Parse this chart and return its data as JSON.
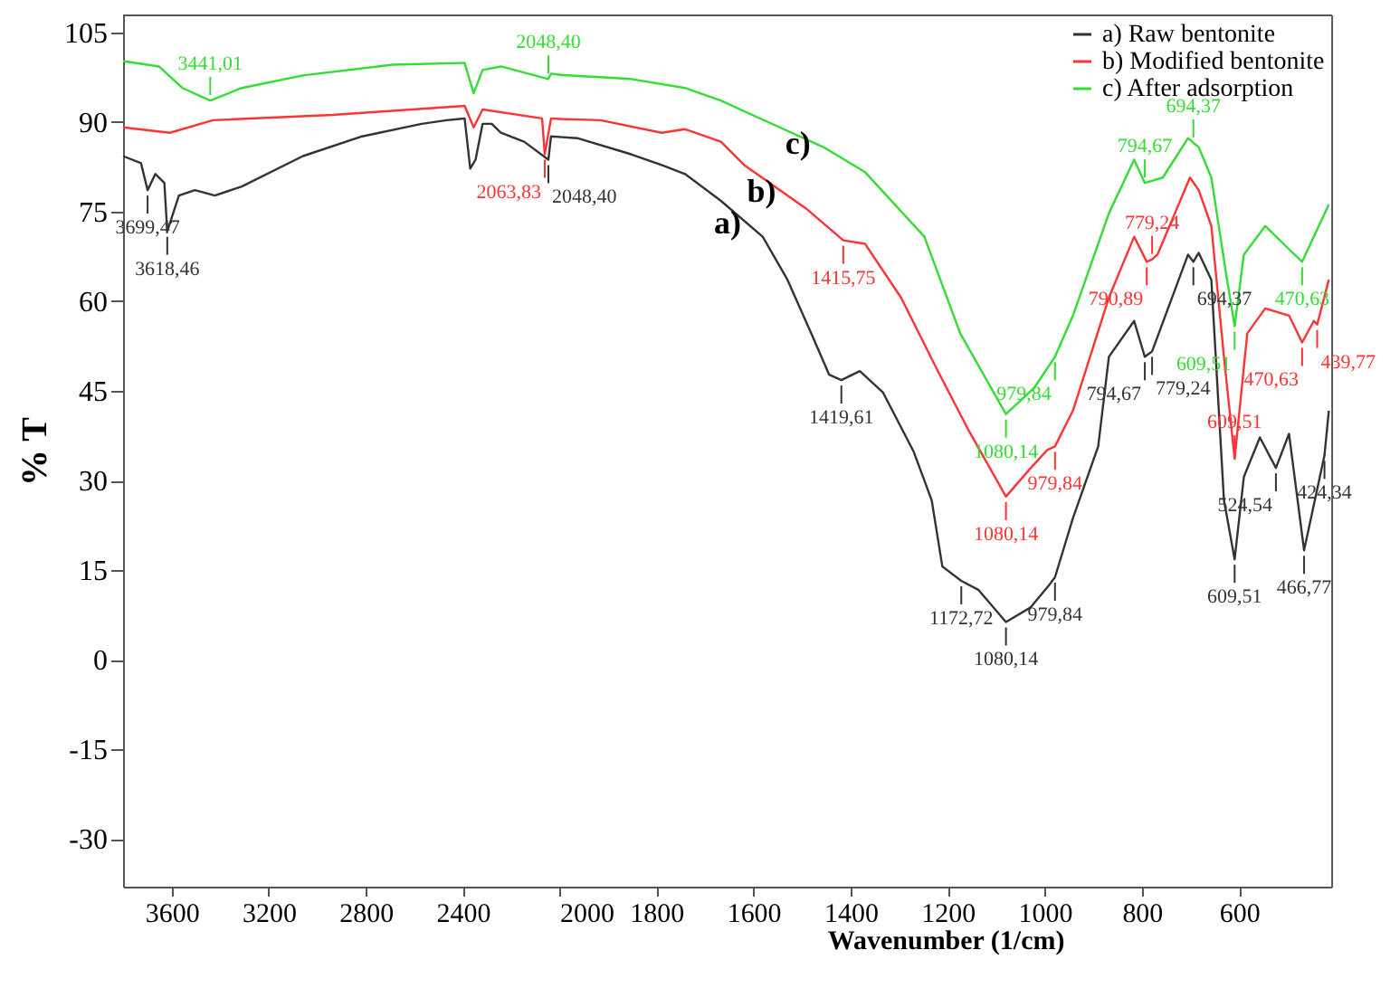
{
  "chart_data": [
    {
      "type": "line",
      "ylabel": "% T",
      "xlim": [
        3800,
        2000
      ],
      "xticks": [
        3600,
        3200,
        2800,
        2400
      ],
      "ylim": [
        -38,
        108
      ],
      "yticks": [
        105,
        90,
        75,
        60,
        45,
        30,
        15,
        0,
        -15,
        -30
      ],
      "grid": false,
      "marker": "none",
      "line_style": "solid",
      "series": [
        {
          "color": "#333333",
          "x": [
            3800,
            3726,
            3699,
            3667,
            3630,
            3618,
            3570,
            3504,
            3422,
            3311,
            3059,
            2815,
            2570,
            2467,
            2393,
            2370,
            2348,
            2319,
            2281,
            2244,
            2148,
            2048,
            2037,
            2000
          ],
          "values": [
            84.3,
            83.1,
            78.6,
            81.3,
            79.8,
            71.7,
            77.7,
            78.6,
            77.7,
            79.2,
            84.3,
            87.6,
            89.7,
            90.3,
            90.6,
            82.2,
            83.7,
            89.7,
            89.7,
            88.2,
            86.7,
            83.7,
            87.6,
            87.5
          ]
        },
        {
          "color": "#ff3333",
          "x": [
            3800,
            3607,
            3430,
            2937,
            2393,
            2356,
            2319,
            2074,
            2063,
            2037,
            2000
          ],
          "values": [
            89.1,
            88.2,
            90.3,
            91.2,
            92.7,
            89.1,
            92.1,
            90.6,
            84.6,
            90.6,
            90.5
          ]
        },
        {
          "color": "#33dd33",
          "x": [
            3800,
            3652,
            3556,
            3441,
            3311,
            3059,
            2689,
            2393,
            2356,
            2319,
            2244,
            2048,
            2037,
            2000
          ],
          "values": [
            100.2,
            99.3,
            95.7,
            93.6,
            95.7,
            97.8,
            99.6,
            99.9,
            94.8,
            98.7,
            99.3,
            97.2,
            98.1,
            97.9
          ]
        }
      ],
      "annotations": [
        {
          "text": "3699,47",
          "x": 3699,
          "y": 78.6
        },
        {
          "text": "3618,46",
          "x": 3618,
          "y": 71.7
        },
        {
          "text": "2048,40",
          "x": 2048,
          "y": 83.7
        },
        {
          "text": "2063,83",
          "x": 2063,
          "y": 84.6
        },
        {
          "text": "3441,01",
          "x": 3441,
          "y": 93.6
        },
        {
          "text": "2048,40",
          "x": 2048,
          "y": 97.2
        }
      ]
    },
    {
      "type": "line",
      "xlabel": "Wavenumber (1/cm)",
      "xlim": [
        2000,
        410
      ],
      "xticks": [
        2000,
        1800,
        1600,
        1400,
        1200,
        1000,
        800,
        600
      ],
      "ylim": [
        -38,
        108
      ],
      "tick_labels": "x",
      "grid": false,
      "legend": "top right",
      "marker": "none",
      "line_style": "solid",
      "series": [
        {
          "name": "a) Raw bentonite",
          "color": "#333333",
          "x": [
            2000,
            1963,
            1852,
            1789,
            1741,
            1667,
            1581,
            1530,
            1481,
            1444,
            1419,
            1381,
            1333,
            1270,
            1233,
            1211,
            1172,
            1137,
            1080,
            1030,
            990,
            979,
            942,
            890,
            868,
            816,
            794,
            779,
            705,
            694,
            683,
            657,
            631,
            609,
            590,
            557,
            524,
            497,
            466,
            424,
            415
          ],
          "values": [
            87.5,
            87.3,
            84.6,
            82.8,
            81.3,
            76.8,
            70.8,
            63.6,
            54.6,
            47.7,
            46.8,
            48.3,
            44.7,
            34.8,
            26.7,
            15.6,
            13.2,
            11.7,
            6.3,
            8.7,
            12.6,
            13.8,
            23.7,
            35.7,
            50.7,
            56.7,
            50.7,
            51.6,
            67.8,
            66.6,
            68.1,
            63.6,
            26.7,
            16.8,
            30.6,
            37.2,
            32.1,
            37.8,
            18.3,
            34.2,
            41.7
          ]
        },
        {
          "name": "b) Modified bentonite",
          "color": "#ff3333",
          "x": [
            2000,
            1915,
            1789,
            1741,
            1667,
            1619,
            1493,
            1415,
            1370,
            1296,
            1222,
            1159,
            1080,
            1032,
            995,
            979,
            942,
            868,
            816,
            790,
            779,
            768,
            701,
            683,
            657,
            631,
            609,
            583,
            546,
            497,
            470,
            446,
            439,
            415
          ],
          "values": [
            90.5,
            90.3,
            88.2,
            88.8,
            86.7,
            82.8,
            75.6,
            70.2,
            69.6,
            60.6,
            48.6,
            38.7,
            27.3,
            31.8,
            35.1,
            35.7,
            41.7,
            60.6,
            70.8,
            66.6,
            67.0,
            67.8,
            80.7,
            78.6,
            72.6,
            50.7,
            33.6,
            54.6,
            58.8,
            57.6,
            53.1,
            56.7,
            56.1,
            63.6
          ]
        },
        {
          "name": "c) After adsorption",
          "color": "#33dd33",
          "x": [
            2000,
            1852,
            1741,
            1667,
            1619,
            1456,
            1370,
            1248,
            1174,
            1080,
            1021,
            979,
            942,
            868,
            816,
            794,
            757,
            705,
            694,
            683,
            657,
            627,
            609,
            590,
            546,
            497,
            470,
            415
          ],
          "values": [
            97.9,
            97.2,
            95.7,
            93.6,
            91.8,
            85.8,
            81.6,
            70.8,
            54.6,
            41.1,
            45.6,
            50.7,
            57.6,
            74.7,
            83.7,
            79.8,
            80.7,
            87.3,
            86.5,
            85.8,
            80.7,
            64.8,
            55.8,
            67.8,
            72.6,
            68.7,
            66.6,
            76.2
          ]
        }
      ],
      "annotations": [
        "a)",
        "b)",
        "c)",
        {
          "text": "1419,61",
          "x": 1419,
          "y": 46.8
        },
        {
          "text": "1172,72",
          "x": 1172,
          "y": 13.2
        },
        {
          "text": "1080,14",
          "x": 1080,
          "y": 6.3
        },
        {
          "text": "979,84",
          "x": 979,
          "y": 13.8
        },
        {
          "text": "794,67",
          "x": 794,
          "y": 50.7
        },
        {
          "text": "779,24",
          "x": 779,
          "y": 51.6
        },
        {
          "text": "694,37",
          "x": 694,
          "y": 66.6
        },
        {
          "text": "609,51",
          "x": 609,
          "y": 16.8
        },
        {
          "text": "524,54",
          "x": 524,
          "y": 32.1
        },
        {
          "text": "466,77",
          "x": 466,
          "y": 18.3
        },
        {
          "text": "424,34",
          "x": 424,
          "y": 34.2
        },
        {
          "text": "1415,75",
          "x": 1415,
          "y": 70.2
        },
        {
          "text": "1080,14",
          "x": 1080,
          "y": 27.3
        },
        {
          "text": "979,84",
          "x": 979,
          "y": 35.7
        },
        {
          "text": "790,89",
          "x": 790,
          "y": 66.6
        },
        {
          "text": "779,24",
          "x": 779,
          "y": 67.0
        },
        {
          "text": "609,51",
          "x": 609,
          "y": 33.6
        },
        {
          "text": "470,63",
          "x": 470,
          "y": 53.1
        },
        {
          "text": "439,77",
          "x": 439,
          "y": 56.1
        },
        {
          "text": "1080,14",
          "x": 1080,
          "y": 41.1
        },
        {
          "text": "979,84",
          "x": 979,
          "y": 50.7
        },
        {
          "text": "794,67",
          "x": 794,
          "y": 79.8
        },
        {
          "text": "694,37",
          "x": 694,
          "y": 86.5
        },
        {
          "text": "609,51",
          "x": 609,
          "y": 55.8
        },
        {
          "text": "470,63",
          "x": 470,
          "y": 66.6
        }
      ]
    }
  ]
}
